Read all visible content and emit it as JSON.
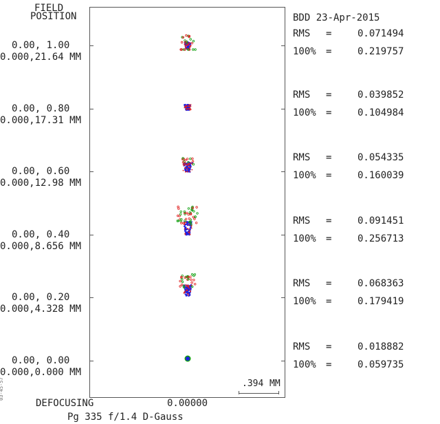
{
  "header": {
    "field_title_1": "FIELD",
    "field_title_2": "POSITION",
    "stamp": "BDD 23-Apr-2015"
  },
  "fields": [
    {
      "rel": "0.00, 1.00",
      "abs": "0.000,21.64 MM",
      "rms_label": "RMS",
      "rms_eq": "=",
      "rms": "0.071494",
      "p100_label": "100%",
      "p100_eq": "=",
      "p100": "0.219757",
      "spot": "full"
    },
    {
      "rel": "0.00, 0.80",
      "abs": "0.000,17.31 MM",
      "rms_label": "RMS",
      "rms_eq": "=",
      "rms": "0.039852",
      "p100_label": "100%",
      "p100_eq": "=",
      "p100": "0.104984",
      "spot": "compact"
    },
    {
      "rel": "0.00, 0.60",
      "abs": "0.000,12.98 MM",
      "rms_label": "RMS",
      "rms_eq": "=",
      "rms": "0.054335",
      "p100_label": "100%",
      "p100_eq": "=",
      "p100": "0.160039",
      "spot": "tri"
    },
    {
      "rel": "0.00, 0.40",
      "abs": "0.000,8.656 MM",
      "rms_label": "RMS",
      "rms_eq": "=",
      "rms": "0.091451",
      "p100_label": "100%",
      "p100_eq": "=",
      "p100": "0.256713",
      "spot": "flare"
    },
    {
      "rel": "0.00, 0.20",
      "abs": "0.000,4.328 MM",
      "rms_label": "RMS",
      "rms_eq": "=",
      "rms": "0.068363",
      "p100_label": "100%",
      "p100_eq": "=",
      "p100": "0.179419",
      "spot": "flare-small"
    },
    {
      "rel": "0.00, 0.00",
      "abs": "0.000,0.000 MM",
      "rms_label": "RMS",
      "rms_eq": "=",
      "rms": "0.018882",
      "p100_label": "100%",
      "p100_eq": "=",
      "p100": "0.059735",
      "spot": "dot"
    }
  ],
  "scale_bar": {
    "value": ".394",
    "unit": "MM"
  },
  "footer": {
    "defocusing_label": "DEFOCUSING",
    "defocusing_value": "0.00000",
    "caption": "Pg 335 f/1.4 D-Gauss",
    "side_id": "03-45-57"
  },
  "colors": {
    "blue": "#2020e0",
    "green": "#10a010",
    "red": "#e02020",
    "frame": "#555555"
  }
}
